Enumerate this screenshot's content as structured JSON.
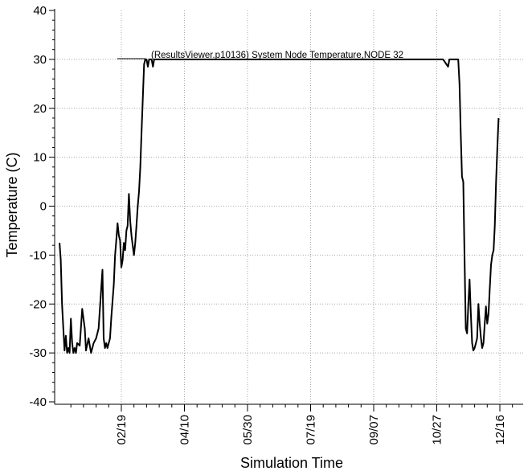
{
  "chart_data": {
    "type": "line",
    "title": "",
    "xlabel": "Simulation Time",
    "ylabel": "Temperature (C)",
    "ylim": [
      -40,
      40
    ],
    "yticks": [
      -40,
      -30,
      -20,
      -10,
      0,
      10,
      20,
      30,
      40
    ],
    "x_tick_labels": [
      "02/19",
      "04/10",
      "05/30",
      "07/19",
      "09/07",
      "10/27",
      "12/16"
    ],
    "grid": true,
    "legend_position": "top-center",
    "colors": {
      "series": "#000000",
      "grid": "#a8a8a8"
    },
    "series": [
      {
        "name": "(ResultsViewer.p10136) System Node Temperature,NODE 32",
        "points": [
          [
            "01-01",
            -7.5
          ],
          [
            "01-02",
            -11
          ],
          [
            "01-03",
            -20
          ],
          [
            "01-04",
            -25
          ],
          [
            "01-05",
            -29.5
          ],
          [
            "01-06",
            -26.5
          ],
          [
            "01-07",
            -30
          ],
          [
            "01-08",
            -29
          ],
          [
            "01-09",
            -30
          ],
          [
            "01-10",
            -23
          ],
          [
            "01-11",
            -28
          ],
          [
            "01-12",
            -30
          ],
          [
            "01-13",
            -29
          ],
          [
            "01-14",
            -30
          ],
          [
            "01-15",
            -28
          ],
          [
            "01-17",
            -28.5
          ],
          [
            "01-19",
            -21
          ],
          [
            "01-21",
            -25
          ],
          [
            "01-22",
            -29.5
          ],
          [
            "01-24",
            -27
          ],
          [
            "01-26",
            -30
          ],
          [
            "01-28",
            -28
          ],
          [
            "01-30",
            -27
          ],
          [
            "02-01",
            -25
          ],
          [
            "02-03",
            -17
          ],
          [
            "02-04",
            -13
          ],
          [
            "02-05",
            -27
          ],
          [
            "02-06",
            -29
          ],
          [
            "02-07",
            -28
          ],
          [
            "02-08",
            -29
          ],
          [
            "02-10",
            -27
          ],
          [
            "02-11",
            -23
          ],
          [
            "02-13",
            -16
          ],
          [
            "02-14",
            -10
          ],
          [
            "02-15",
            -7
          ],
          [
            "02-16",
            -3.5
          ],
          [
            "02-17",
            -6
          ],
          [
            "02-18",
            -7
          ],
          [
            "02-19",
            -12.5
          ],
          [
            "02-20",
            -11
          ],
          [
            "02-21",
            -7.5
          ],
          [
            "02-22",
            -9
          ],
          [
            "02-23",
            -5
          ],
          [
            "02-24",
            -4
          ],
          [
            "02-25",
            2.5
          ],
          [
            "02-26",
            -3
          ],
          [
            "02-27",
            -6
          ],
          [
            "02-28",
            -8
          ],
          [
            "03-01",
            -10
          ],
          [
            "03-02",
            -7.5
          ],
          [
            "03-03",
            -4
          ],
          [
            "03-04",
            0
          ],
          [
            "03-05",
            3
          ],
          [
            "03-06",
            8
          ],
          [
            "03-07",
            15
          ],
          [
            "03-08",
            22
          ],
          [
            "03-09",
            29
          ],
          [
            "03-10",
            30
          ],
          [
            "03-11",
            30
          ],
          [
            "03-12",
            28.5
          ],
          [
            "03-13",
            30
          ],
          [
            "03-15",
            30
          ],
          [
            "03-16",
            28.5
          ],
          [
            "03-17",
            30
          ],
          [
            "05-01",
            30
          ],
          [
            "07-01",
            30
          ],
          [
            "09-01",
            30
          ],
          [
            "11-01",
            30
          ],
          [
            "11-05",
            28.5
          ],
          [
            "11-06",
            30
          ],
          [
            "11-13",
            30
          ],
          [
            "11-14",
            25
          ],
          [
            "11-15",
            15
          ],
          [
            "11-16",
            6
          ],
          [
            "11-17",
            5
          ],
          [
            "11-18",
            -10
          ],
          [
            "11-19",
            -25
          ],
          [
            "11-20",
            -26
          ],
          [
            "11-21",
            -20
          ],
          [
            "11-22",
            -15
          ],
          [
            "11-23",
            -22
          ],
          [
            "11-24",
            -28
          ],
          [
            "11-25",
            -29.5
          ],
          [
            "11-26",
            -29
          ],
          [
            "11-27",
            -28
          ],
          [
            "11-28",
            -27
          ],
          [
            "11-29",
            -20
          ],
          [
            "11-30",
            -24
          ],
          [
            "12-01",
            -27
          ],
          [
            "12-02",
            -29
          ],
          [
            "12-03",
            -28
          ],
          [
            "12-04",
            -24
          ],
          [
            "12-05",
            -20.5
          ],
          [
            "12-06",
            -24
          ],
          [
            "12-07",
            -22
          ],
          [
            "12-08",
            -17
          ],
          [
            "12-09",
            -12
          ],
          [
            "12-10",
            -10
          ],
          [
            "12-11",
            -9
          ],
          [
            "12-12",
            -4
          ],
          [
            "12-13",
            5
          ],
          [
            "12-14",
            12
          ],
          [
            "12-15",
            18
          ]
        ]
      }
    ]
  }
}
